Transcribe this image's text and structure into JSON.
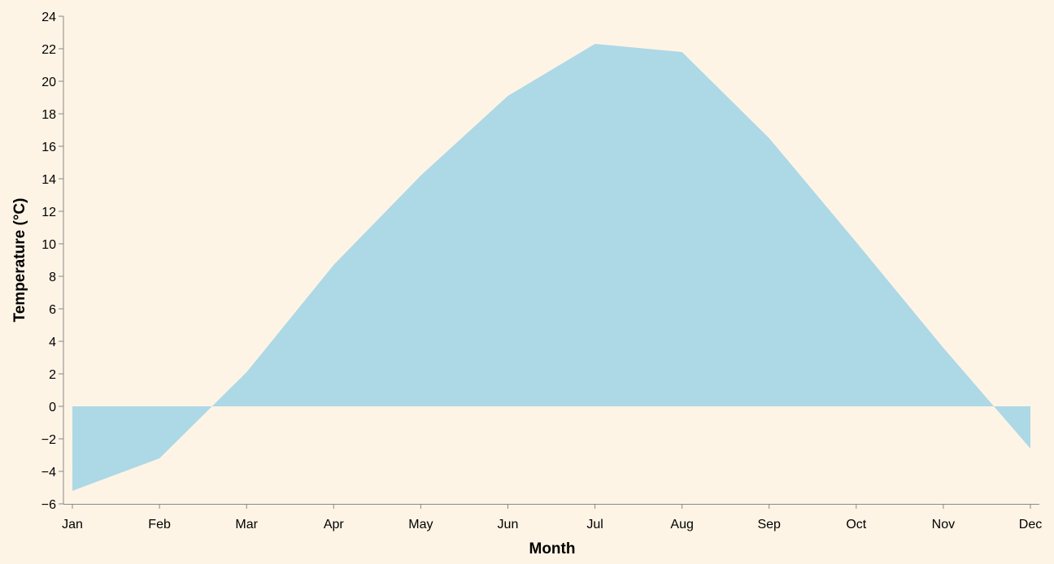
{
  "chart_data": {
    "type": "area",
    "x_label": "Month",
    "y_label": "Temperature (°C)",
    "categories": [
      "Jan",
      "Feb",
      "Mar",
      "Apr",
      "May",
      "Jun",
      "Jul",
      "Aug",
      "Sep",
      "Oct",
      "Nov",
      "Dec"
    ],
    "values": [
      -5.2,
      -3.2,
      2.1,
      8.7,
      14.2,
      19.1,
      22.3,
      21.8,
      16.5,
      10.1,
      3.6,
      -2.6
    ],
    "color": "#add8e6",
    "ylim": [
      -6,
      24
    ],
    "yticks": [
      {
        "value": -6,
        "label": "−6"
      },
      {
        "value": -4,
        "label": "−4"
      },
      {
        "value": -2,
        "label": "−2"
      },
      0,
      2,
      4,
      6,
      8,
      10,
      12,
      14,
      16,
      18,
      20,
      22,
      24
    ],
    "grid": false
  }
}
